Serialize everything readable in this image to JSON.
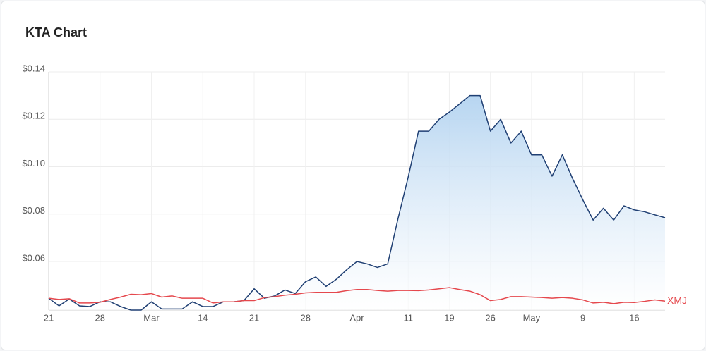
{
  "chart_data": {
    "type": "line",
    "title": "KTA Chart",
    "categories": [
      "21",
      null,
      null,
      null,
      null,
      "28",
      null,
      null,
      null,
      null,
      "Mar",
      null,
      null,
      null,
      null,
      "14",
      null,
      null,
      null,
      null,
      "21",
      null,
      null,
      null,
      null,
      "28",
      null,
      null,
      null,
      null,
      "Apr",
      null,
      null,
      null,
      null,
      "11",
      null,
      null,
      null,
      "19",
      null,
      null,
      null,
      "26",
      null,
      null,
      null,
      "May",
      null,
      null,
      null,
      null,
      "9",
      null,
      null,
      null,
      null,
      "16",
      null,
      null,
      null
    ],
    "series": [
      {
        "color": "#1f3f73",
        "area": true,
        "values": [
          0.0445,
          0.0413,
          0.0442,
          0.0413,
          0.041,
          0.043,
          0.043,
          0.041,
          0.0395,
          0.0395,
          0.043,
          0.04,
          0.04,
          0.04,
          0.043,
          0.041,
          0.041,
          0.043,
          0.043,
          0.0435,
          0.0485,
          0.0445,
          0.0455,
          0.048,
          0.0465,
          0.0515,
          0.0535,
          0.0495,
          0.0525,
          0.0565,
          0.06,
          0.059,
          0.0575,
          0.059,
          0.078,
          0.0957,
          0.115,
          0.115,
          0.12,
          0.123,
          0.1265,
          0.13,
          0.13,
          0.115,
          0.12,
          0.11,
          0.115,
          0.105,
          0.105,
          0.096,
          0.105,
          0.095,
          0.086,
          0.0775,
          0.0825,
          0.0775,
          0.0835,
          0.0818,
          0.081,
          0.0797,
          0.0785
        ]
      },
      {
        "name": "XMJ",
        "color": "#e5484d",
        "values": [
          0.0445,
          0.044,
          0.0443,
          0.0425,
          0.0425,
          0.0428,
          0.044,
          0.045,
          0.0462,
          0.046,
          0.0465,
          0.045,
          0.0455,
          0.0445,
          0.0445,
          0.0445,
          0.0425,
          0.043,
          0.043,
          0.0435,
          0.0435,
          0.0448,
          0.0452,
          0.0458,
          0.0462,
          0.0468,
          0.047,
          0.047,
          0.047,
          0.0477,
          0.0482,
          0.0482,
          0.0478,
          0.0475,
          0.0478,
          0.0478,
          0.0477,
          0.048,
          0.0485,
          0.049,
          0.0482,
          0.0475,
          0.046,
          0.0435,
          0.044,
          0.0452,
          0.0452,
          0.045,
          0.0448,
          0.0445,
          0.0448,
          0.0445,
          0.0438,
          0.0425,
          0.0428,
          0.0422,
          0.0428,
          0.0427,
          0.0432,
          0.0438,
          0.0433
        ]
      }
    ],
    "ylim": [
      0.0395,
      0.14
    ],
    "yticks": [
      {
        "value": 0.06,
        "label": "$0.06"
      },
      {
        "value": 0.08,
        "label": "$0.08"
      },
      {
        "value": 0.1,
        "label": "$0.10"
      },
      {
        "value": 0.12,
        "label": "$0.12"
      },
      {
        "value": 0.14,
        "label": "$0.14"
      }
    ],
    "grid": true
  }
}
